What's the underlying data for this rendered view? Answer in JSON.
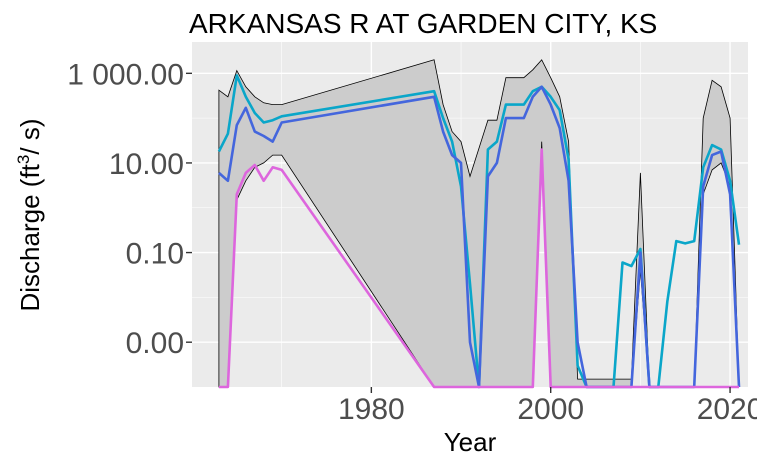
{
  "chart_data": {
    "type": "line",
    "title": "ARKANSAS R AT GARDEN CITY, KS",
    "xlabel": "Year",
    "ylabel": "Discharge",
    "ylabel_unit_base": "ft",
    "ylabel_unit_exp": "3",
    "ylabel_unit_tail": "/ s",
    "y_scale": "log",
    "xlim": [
      1960,
      2022
    ],
    "ylim": [
      0.0001,
      5000
    ],
    "x_ticks": [
      1980,
      2000,
      2020
    ],
    "x_tick_labels": [
      "1980",
      "2000",
      "2020"
    ],
    "y_ticks": [
      0.001,
      0.1,
      10,
      1000
    ],
    "y_tick_labels": [
      "0.00",
      "0.10",
      "10.00",
      "1 000.00"
    ],
    "grid": true,
    "band": {
      "upper_x": [
        1963,
        1964,
        1965,
        1966,
        1967,
        1968,
        1969,
        1970,
        1987,
        1988,
        1989,
        1990,
        1991,
        1993,
        1994,
        1995,
        1996,
        1997,
        1998,
        1999,
        2000,
        2001,
        2002,
        2003,
        2009,
        2010,
        2011,
        2016,
        2017,
        2018,
        2019,
        2020,
        2021
      ],
      "upper_y": [
        420,
        300,
        1150,
        500,
        300,
        220,
        200,
        200,
        2000,
        200,
        50,
        30,
        5,
        90,
        90,
        800,
        800,
        800,
        1200,
        2000,
        800,
        300,
        30,
        0.00015,
        0.00015,
        6,
        0.0001,
        0.0001,
        100,
        700,
        500,
        100,
        0.0001
      ],
      "lower_x": [
        2021,
        2020,
        2019,
        2018,
        2017,
        2016,
        2015,
        2011,
        2010,
        2009,
        2003,
        2002,
        2001,
        2000,
        1999,
        1998,
        1997,
        1996,
        1995,
        1994,
        1993,
        1992,
        1991,
        1990,
        1989,
        1988,
        1987,
        1970,
        1969,
        1968,
        1967,
        1966,
        1965,
        1964,
        1963
      ],
      "lower_y": [
        0.0001,
        3,
        10,
        7,
        2,
        0.0001,
        0.0001,
        0.0001,
        0.04,
        0.0001,
        0.0001,
        0.0001,
        0.0001,
        0.0001,
        30,
        0.0001,
        0.0001,
        0.0001,
        0.0001,
        0.0001,
        0.0001,
        0.0001,
        0.0001,
        0.0001,
        0.0001,
        0.0001,
        0.0001,
        15,
        15,
        10,
        8,
        4,
        1.5,
        0.0001,
        0.0001
      ]
    },
    "series": [
      {
        "color": "#0aa6c9",
        "x": [
          1963,
          1964,
          1965,
          1966,
          1967,
          1968,
          1969,
          1970,
          1987,
          1988,
          1989,
          1990,
          1991,
          1992,
          1993,
          1994,
          1995,
          1996,
          1997,
          1998,
          1999,
          2000,
          2001,
          2002,
          2003,
          2004,
          2005,
          2006,
          2007,
          2008,
          2009,
          2010,
          2011,
          2012,
          2013,
          2014,
          2015,
          2016,
          2017,
          2018,
          2019,
          2020,
          2021
        ],
        "y": [
          18,
          45,
          900,
          300,
          130,
          80,
          90,
          110,
          400,
          100,
          30,
          3,
          0.02,
          0.0001,
          20,
          30,
          200,
          200,
          200,
          400,
          500,
          300,
          150,
          12,
          0.0003,
          5e-05,
          5e-05,
          5e-05,
          0.0001,
          0.06,
          0.05,
          0.12,
          0.0001,
          5e-05,
          0.008,
          0.18,
          0.16,
          0.18,
          8,
          25,
          20,
          4,
          0.15
        ]
      },
      {
        "color": "#4466dd",
        "x": [
          1963,
          1964,
          1965,
          1966,
          1967,
          1968,
          1969,
          1970,
          1987,
          1988,
          1989,
          1990,
          1991,
          1992,
          1993,
          1994,
          1995,
          1996,
          1997,
          1998,
          1999,
          2000,
          2001,
          2002,
          2003,
          2004,
          2008,
          2009,
          2010,
          2011,
          2016,
          2017,
          2018,
          2019,
          2020,
          2021
        ],
        "y": [
          6,
          4,
          70,
          170,
          50,
          40,
          30,
          80,
          300,
          50,
          15,
          10,
          0.001,
          0.0001,
          5,
          10,
          100,
          100,
          100,
          300,
          500,
          200,
          60,
          4,
          0.001,
          0.0001,
          0.0001,
          0.0001,
          0.1,
          0.0001,
          0.0001,
          3,
          15,
          18,
          2,
          0.0001
        ]
      },
      {
        "color": "#dd66dd",
        "x": [
          1963,
          1964,
          1965,
          1966,
          1967,
          1968,
          1969,
          1970,
          1987,
          1998,
          1999,
          2000,
          2015,
          2020,
          2021
        ],
        "y": [
          0.0001,
          0.0001,
          2,
          6,
          9,
          4,
          8,
          7,
          0.0001,
          0.0001,
          20,
          0.0001,
          0.0001,
          0.0001,
          0.0001
        ]
      }
    ]
  }
}
